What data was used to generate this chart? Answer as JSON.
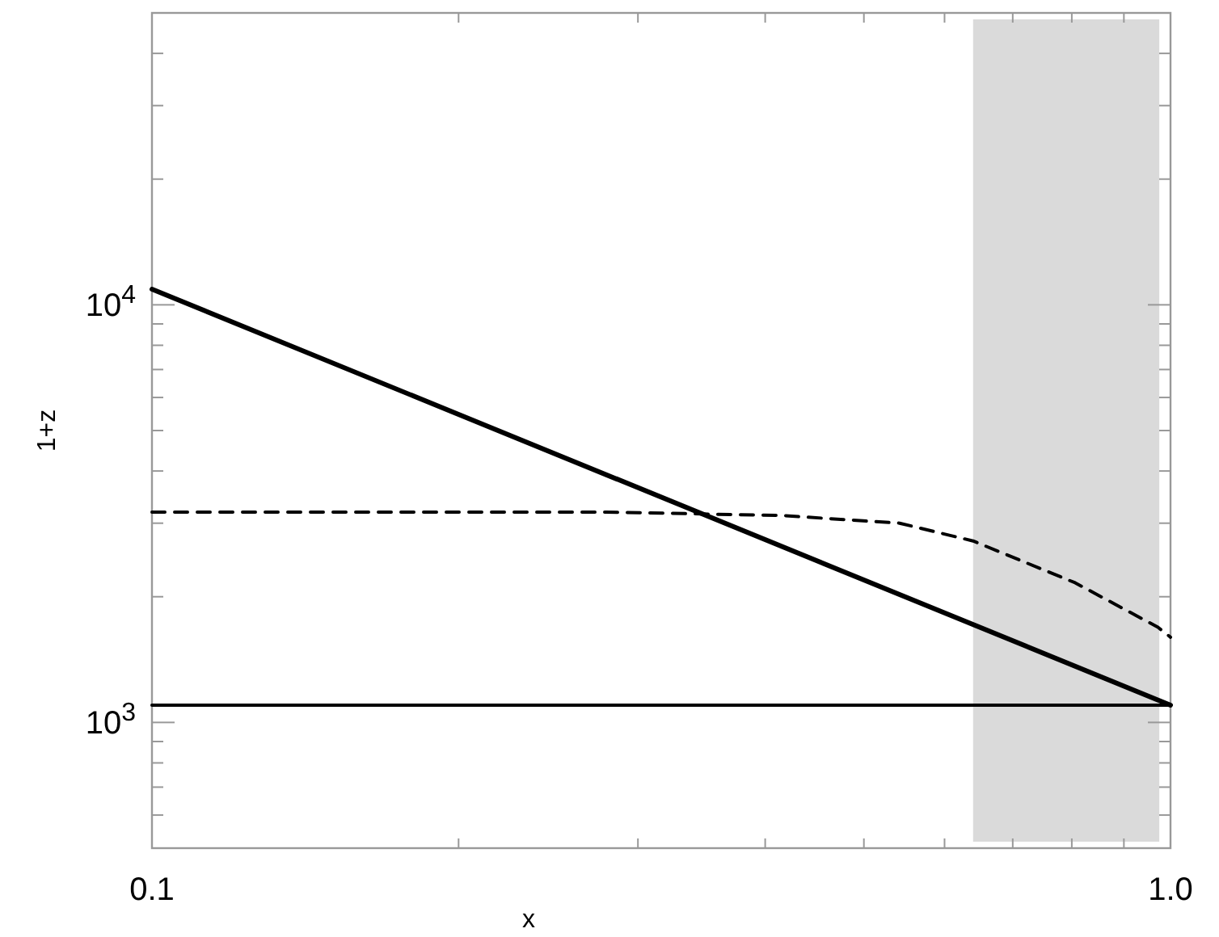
{
  "chart_data": {
    "type": "line",
    "xlabel": "x",
    "ylabel": "1+z",
    "log": "xy",
    "grid": false,
    "xlim": [
      0.1,
      1.0
    ],
    "ylim": [
      500,
      50000
    ],
    "xticks": [
      {
        "value": 0.1,
        "label": "0.1"
      },
      {
        "value": 0.2,
        "label": null
      },
      {
        "value": 0.3,
        "label": null
      },
      {
        "value": 0.4,
        "label": null
      },
      {
        "value": 0.5,
        "label": null
      },
      {
        "value": 0.6,
        "label": null
      },
      {
        "value": 0.7,
        "label": null
      },
      {
        "value": 0.8,
        "label": null
      },
      {
        "value": 0.9,
        "label": null
      },
      {
        "value": 1.0,
        "label": "1.0"
      }
    ],
    "yticks": [
      {
        "value": 600,
        "label": null
      },
      {
        "value": 700,
        "label": null
      },
      {
        "value": 800,
        "label": null
      },
      {
        "value": 900,
        "label": null
      },
      {
        "value": 1000,
        "label": "10$^{3}$"
      },
      {
        "value": 2000,
        "label": null
      },
      {
        "value": 3000,
        "label": null
      },
      {
        "value": 4000,
        "label": null
      },
      {
        "value": 5000,
        "label": null
      },
      {
        "value": 6000,
        "label": null
      },
      {
        "value": 7000,
        "label": null
      },
      {
        "value": 8000,
        "label": null
      },
      {
        "value": 9000,
        "label": null
      },
      {
        "value": 10000,
        "label": "10$^{4}$"
      },
      {
        "value": 20000,
        "label": null
      },
      {
        "value": 30000,
        "label": null
      },
      {
        "value": 40000,
        "label": null
      }
    ],
    "bands": [
      {
        "axis": "x",
        "from": 0.64,
        "to": 0.975,
        "color": "#dadada"
      }
    ],
    "series": [
      {
        "color": "#000000",
        "line_style": "solid",
        "x": [
          0.1,
          1.0
        ],
        "values": [
          10900,
          1100
        ]
      },
      {
        "color": "#000000",
        "line_style": "solid",
        "x": [
          0.1,
          1.0
        ],
        "values": [
          1100,
          1100
        ]
      },
      {
        "color": "#000000",
        "line_style": "dashed",
        "x": [
          0.1,
          0.279,
          0.415,
          0.542,
          0.64,
          0.806,
          0.972,
          1.0
        ],
        "values": [
          3190,
          3190,
          3130,
          3000,
          2720,
          2160,
          1690,
          1600
        ]
      }
    ]
  }
}
